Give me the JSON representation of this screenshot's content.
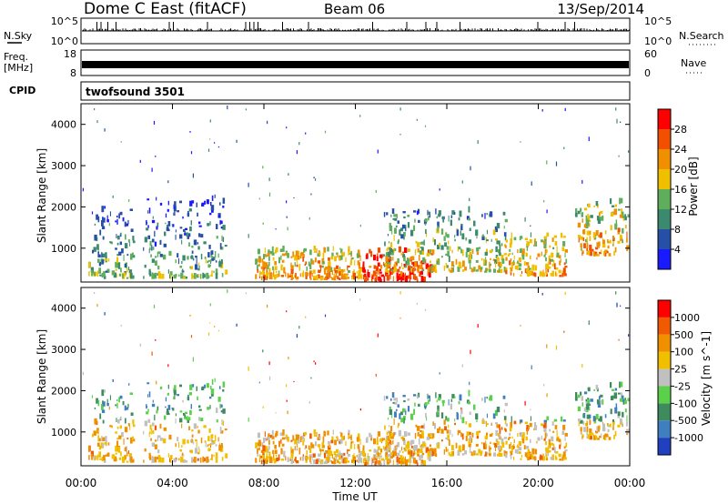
{
  "header": {
    "title": "Dome C East (fitACF)",
    "beam": "Beam 06",
    "date": "13/Sep/2014"
  },
  "nsky_panel": {
    "left_label": "N.Sky",
    "left_ticks": [
      "10^5",
      "10^0"
    ],
    "right_ticks": [
      "10^5",
      "10^0"
    ],
    "right_label": "N.Search"
  },
  "freq_panel": {
    "left_label_1": "Freq.",
    "left_label_2": "[MHz]",
    "left_ticks": [
      "18",
      "8"
    ],
    "right_ticks": [
      "60",
      "0"
    ],
    "right_label": "Nave"
  },
  "cpid_panel": {
    "left_label": "CPID",
    "program": "twofsound 3501"
  },
  "x_axis": {
    "label": "Time UT",
    "ticks": [
      "00:00",
      "04:00",
      "08:00",
      "12:00",
      "16:00",
      "20:00",
      "00:00"
    ]
  },
  "power_panel": {
    "ylabel": "Slant Range [km]",
    "yticks": [
      "4000",
      "3000",
      "2000",
      "1000"
    ],
    "colorbar_label": "Power [dB]",
    "colorbar_ticks": [
      "28",
      "24",
      "20",
      "16",
      "12",
      "8",
      "4"
    ]
  },
  "velocity_panel": {
    "ylabel": "Slant Range [km]",
    "yticks": [
      "4000",
      "3000",
      "2000",
      "1000"
    ],
    "colorbar_label": "Velocity [m s^-1]",
    "colorbar_ticks": [
      "1000",
      "500",
      "100",
      "25",
      "-25",
      "-100",
      "-500",
      "-1000"
    ]
  },
  "chart_data": {
    "type": "heatmap",
    "x_range_hours": [
      0,
      24
    ],
    "y_range_km": [
      180,
      4500
    ],
    "power_colors": [
      "#1a1aff",
      "#2650a8",
      "#3c8a6e",
      "#5fae5c",
      "#f0c000",
      "#f09000",
      "#f05000",
      "#ff0000"
    ],
    "velocity_colors": [
      "#2040c0",
      "#3f7fbf",
      "#3e8c5e",
      "#5bd04a",
      "#c0c0c0",
      "#f0c000",
      "#f09000",
      "#f05a00",
      "#ff0000"
    ],
    "echo_regions": [
      {
        "t0": 0.3,
        "t1": 2.3,
        "r0": 250,
        "r1": 2000,
        "base": 3
      },
      {
        "t0": 2.7,
        "t1": 6.3,
        "r0": 250,
        "r1": 2200,
        "base": 3
      },
      {
        "t0": 7.6,
        "t1": 12.3,
        "r0": 220,
        "r1": 950,
        "base": 5
      },
      {
        "t0": 12.3,
        "t1": 15.3,
        "r0": 180,
        "r1": 900,
        "base": 7
      },
      {
        "t0": 13.2,
        "t1": 18.6,
        "r0": 400,
        "r1": 1900,
        "base": 4
      },
      {
        "t0": 18.5,
        "t1": 21.2,
        "r0": 300,
        "r1": 1300,
        "base": 5
      },
      {
        "t0": 21.6,
        "t1": 23.9,
        "r0": 800,
        "r1": 2100,
        "base": 5
      }
    ]
  }
}
